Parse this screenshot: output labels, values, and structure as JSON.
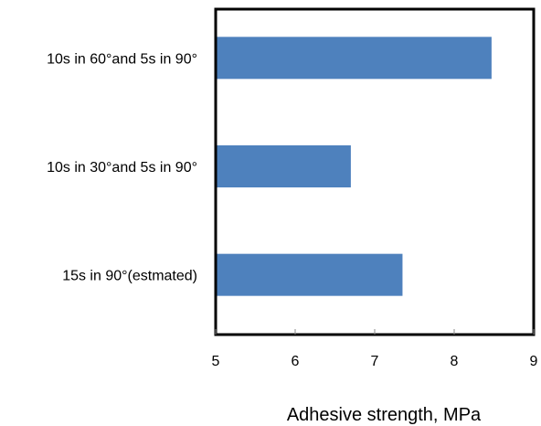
{
  "chart_data": {
    "type": "bar",
    "orientation": "horizontal",
    "categories": [
      "10s in 60°and 5s in 90°",
      "10s in 30°and 5s in 90°",
      "15s in 90°(estmated)"
    ],
    "values": [
      8.47,
      6.7,
      7.35
    ],
    "xlabel": "Adhesive strength, MPa",
    "ylabel": "",
    "xlim": [
      5,
      9
    ],
    "xticks": [
      "5",
      "6",
      "7",
      "8",
      "9"
    ],
    "grid": false,
    "legend": "none",
    "colors": {
      "bar": "#4e81bd",
      "frame": "#000000"
    }
  }
}
